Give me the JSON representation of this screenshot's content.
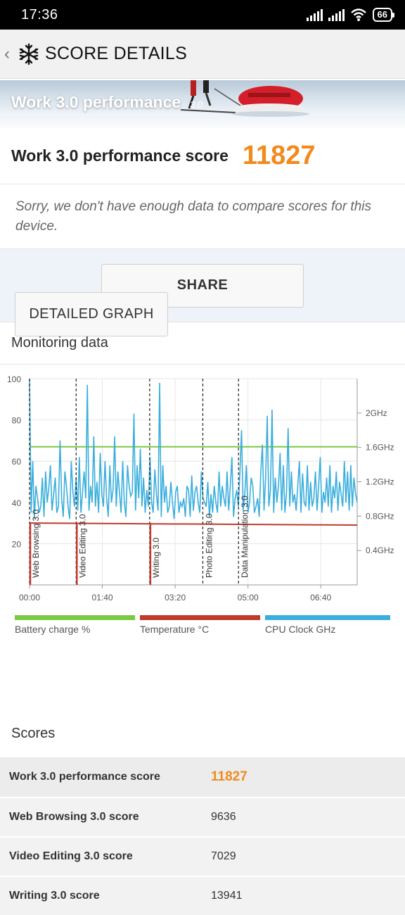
{
  "status": {
    "time": "17:36",
    "battery": "66"
  },
  "header": {
    "title": "SCORE DETAILS"
  },
  "banner": {
    "title": "Work 3.0 performance",
    "version": "3.0"
  },
  "summary": {
    "score_label": "Work 3.0 performance score",
    "score_value": "11827",
    "sorry_text": "Sorry, we don't have enough data to compare scores for this device."
  },
  "share": {
    "label": "SHARE"
  },
  "monitoring": {
    "title": "Monitoring data",
    "detailed_button": "DETAILED GRAPH"
  },
  "colors": {
    "accent": "#f28a1e",
    "battery": "#7ac943",
    "temperature": "#c0392b",
    "cpu": "#3aaedc"
  },
  "chart_data": {
    "type": "line",
    "x_ticks": [
      "00:00",
      "01:40",
      "03:20",
      "05:00",
      "06:40"
    ],
    "y_left_ticks": [
      "20",
      "40",
      "60",
      "80",
      "100"
    ],
    "y_right_ticks": [
      "0.4GHz",
      "0.8GHz",
      "1.2GHz",
      "1.6GHz",
      "2GHz"
    ],
    "ylim": [
      0,
      100
    ],
    "xlim_seconds": [
      0,
      450
    ],
    "markers": [
      {
        "label": "Web Browsing 3.0",
        "t": 0
      },
      {
        "label": "Video Editing 3.0",
        "t": 64
      },
      {
        "label": "Writing 3.0",
        "t": 165
      },
      {
        "label": "Photo Editing 3.0",
        "t": 238
      },
      {
        "label": "Data Manipulation 3.0",
        "t": 287
      }
    ],
    "series": [
      {
        "name": "Battery charge %",
        "values_t": [
          0,
          450
        ],
        "values": [
          67,
          67
        ]
      },
      {
        "name": "Temperature °C",
        "values_t": [
          0,
          450
        ],
        "values": [
          30,
          29
        ]
      },
      {
        "name": "CPU Clock GHz"
      }
    ],
    "cpu_samples": [
      100,
      35,
      60,
      32,
      48,
      42,
      35,
      38,
      52,
      33,
      55,
      40,
      47,
      58,
      36,
      44,
      52,
      35,
      38,
      70,
      42,
      33,
      55,
      48,
      38,
      32,
      60,
      45,
      38,
      52,
      36,
      62,
      35,
      45,
      55,
      42,
      97,
      36,
      48,
      40,
      72,
      38,
      50,
      35,
      64,
      44,
      38,
      60,
      42,
      33,
      58,
      40,
      46,
      72,
      38,
      55,
      45,
      35,
      60,
      40,
      33,
      58,
      48,
      43,
      45,
      83,
      36,
      58,
      42,
      66,
      38,
      52,
      35,
      46,
      38,
      62,
      40,
      35,
      56,
      44,
      36,
      98,
      33,
      58,
      40,
      48,
      35,
      38,
      50,
      40,
      32,
      45,
      48,
      35,
      40,
      38,
      42,
      33,
      48,
      46,
      33,
      53,
      36,
      45,
      48,
      40,
      35,
      55,
      42,
      40,
      38,
      50,
      33,
      44,
      35,
      48,
      40,
      35,
      55,
      38,
      48,
      42,
      38,
      55,
      36,
      48,
      62,
      33,
      42,
      46,
      38,
      55,
      75,
      36,
      44,
      58,
      35,
      40,
      52,
      48,
      35,
      38,
      42,
      33,
      55,
      68,
      36,
      52,
      82,
      38,
      46,
      85,
      35,
      52,
      40,
      48,
      64,
      36,
      58,
      35,
      45,
      76,
      38,
      55,
      40,
      44,
      36,
      48,
      60,
      35,
      54,
      40,
      38,
      58,
      36,
      50,
      38,
      42,
      55,
      36,
      48,
      62,
      35,
      45,
      40,
      52,
      38,
      58,
      35,
      48,
      42,
      55,
      36,
      50,
      44,
      38,
      60,
      40,
      55,
      36,
      58,
      38,
      52,
      44,
      40
    ],
    "xlabel": "",
    "ylabel": ""
  },
  "legend": [
    {
      "label": "Battery charge %",
      "color": "#7ac943"
    },
    {
      "label": "Temperature °C",
      "color": "#c0392b"
    },
    {
      "label": "CPU Clock GHz",
      "color": "#3aaedc"
    }
  ],
  "scores": {
    "title": "Scores",
    "rows": [
      {
        "label": "Work 3.0 performance score",
        "value": "11827"
      },
      {
        "label": "Web Browsing 3.0 score",
        "value": "9636"
      },
      {
        "label": "Video Editing 3.0 score",
        "value": "7029"
      },
      {
        "label": "Writing 3.0 score",
        "value": "13941"
      }
    ]
  }
}
